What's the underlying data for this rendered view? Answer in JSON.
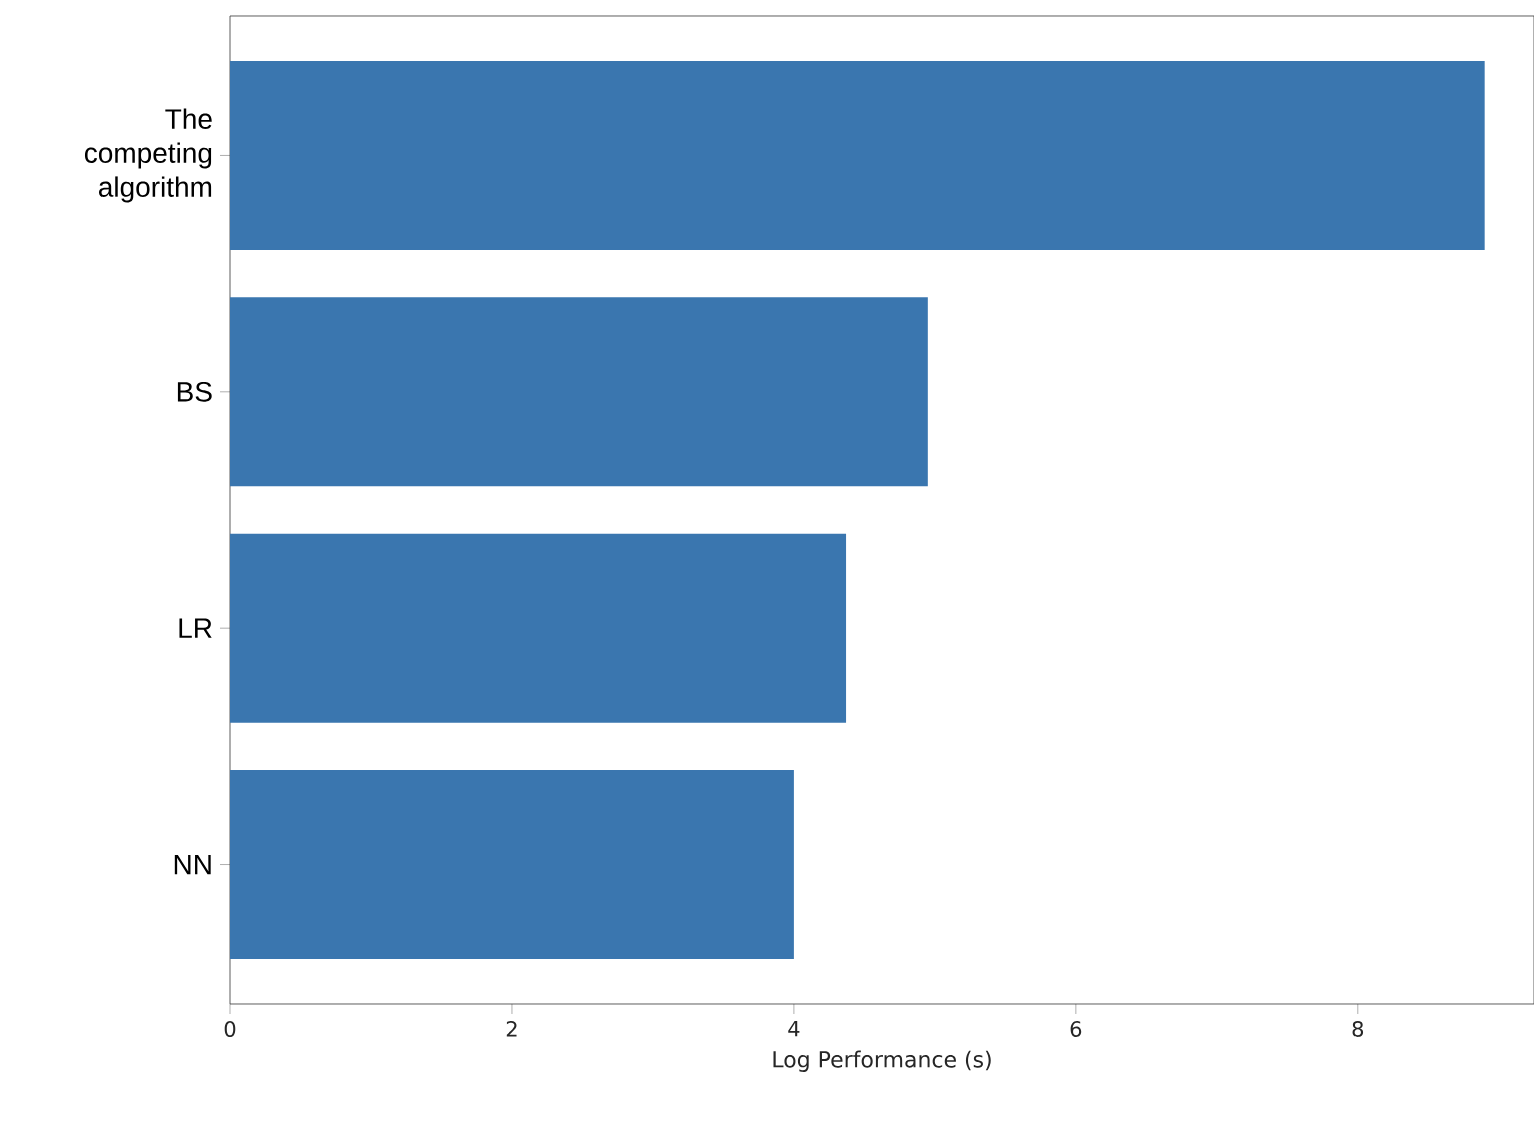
{
  "chart_data": {
    "type": "bar",
    "orientation": "horizontal",
    "xlabel": "Log Performance (s)",
    "categories": [
      "The competing algorithm",
      "BS",
      "LR",
      "NN"
    ],
    "values": [
      8.9,
      4.95,
      4.37,
      4.0
    ],
    "color": "#3a76af",
    "xlim": [
      0,
      9.25
    ],
    "xticks": [
      0,
      2,
      4,
      6,
      8
    ]
  }
}
